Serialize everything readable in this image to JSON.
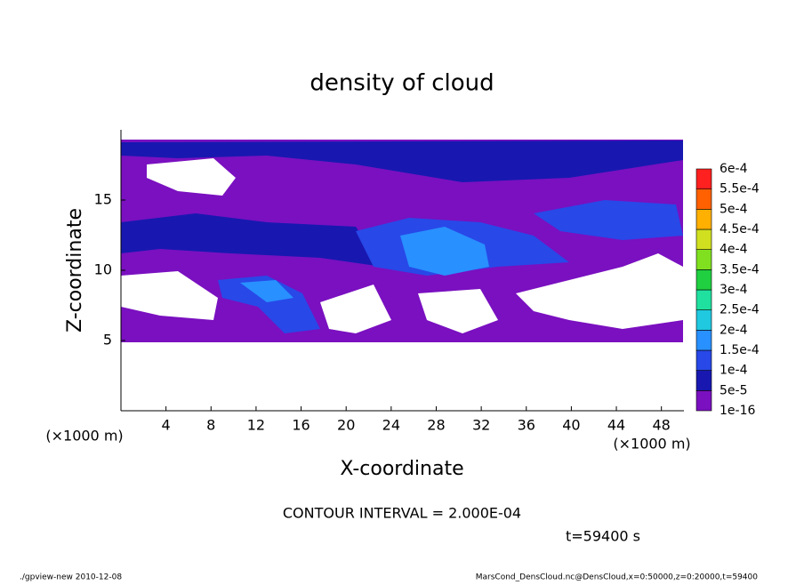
{
  "chart_data": {
    "type": "contour",
    "title": "density of cloud",
    "x_label": "X-coordinate",
    "y_label": "Z-coordinate",
    "x_unit_left": "(×1000 m)",
    "x_unit_right": "(×1000 m)",
    "xlim": [
      0,
      50
    ],
    "xticks": [
      4,
      8,
      12,
      16,
      20,
      24,
      28,
      32,
      36,
      40,
      44,
      48
    ],
    "ylim": [
      0,
      20
    ],
    "yticks": [
      5,
      10,
      15
    ],
    "colorbar": {
      "levels": [
        {
          "value": 1e-16,
          "label": "1e-16"
        },
        {
          "value": 5e-05,
          "label": "5e-5"
        },
        {
          "value": 0.0001,
          "label": "1e-4"
        },
        {
          "value": 0.00015,
          "label": "1.5e-4"
        },
        {
          "value": 0.0002,
          "label": "2e-4"
        },
        {
          "value": 0.00025,
          "label": "2.5e-4"
        },
        {
          "value": 0.0003,
          "label": "3e-4"
        },
        {
          "value": 0.00035,
          "label": "3.5e-4"
        },
        {
          "value": 0.0004,
          "label": "4e-4"
        },
        {
          "value": 0.00045,
          "label": "4.5e-4"
        },
        {
          "value": 0.0005,
          "label": "5e-4"
        },
        {
          "value": 0.00055,
          "label": "5.5e-4"
        },
        {
          "value": 0.0006,
          "label": "6e-4"
        }
      ],
      "colors": [
        "#7a10c0",
        "#1818b0",
        "#2848e8",
        "#2890ff",
        "#20c8e0",
        "#20e0a0",
        "#20d040",
        "#80e020",
        "#d0e020",
        "#ffb000",
        "#ff6000",
        "#ff2020",
        "#ff8080"
      ]
    },
    "contour_interval_text": "CONTOUR INTERVAL = 2.000E-04",
    "time_text": "t=59400 s",
    "footer_left": "./gpview-new   2010-12-08",
    "footer_right": "MarsCond_DensCloud.nc@DensCloud,x=0:50000,z=0:20000,t=59400"
  }
}
